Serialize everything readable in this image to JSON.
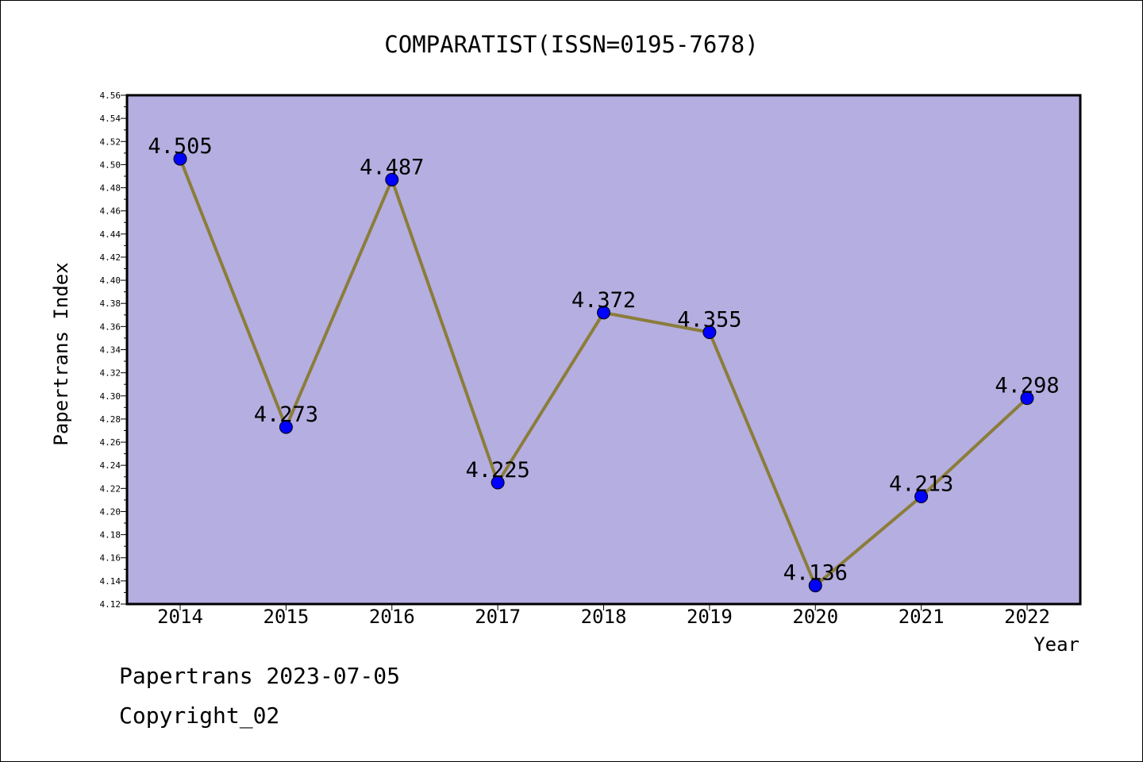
{
  "chart_data": {
    "type": "line",
    "title": "COMPARATIST(ISSN=0195-7678)",
    "xlabel": "Year",
    "ylabel": "Papertrans Index",
    "categories": [
      "2014",
      "2015",
      "2016",
      "2017",
      "2018",
      "2019",
      "2020",
      "2021",
      "2022"
    ],
    "values": [
      4.505,
      4.273,
      4.487,
      4.225,
      4.372,
      4.355,
      4.136,
      4.213,
      4.298
    ],
    "value_labels": [
      "4.505",
      "4.273",
      "4.487",
      "4.225",
      "4.372",
      "4.355",
      "4.136",
      "4.213",
      "4.298"
    ],
    "ylim": [
      4.12,
      4.56
    ],
    "ytick_step": 0.02,
    "grid": false,
    "colors": {
      "plot_background": "#b5aee1",
      "line": "#8b7d3a",
      "marker": "#0000ff"
    }
  },
  "footer": {
    "date_line": "Papertrans 2023-07-05",
    "copyright_line": "Copyright_02"
  }
}
